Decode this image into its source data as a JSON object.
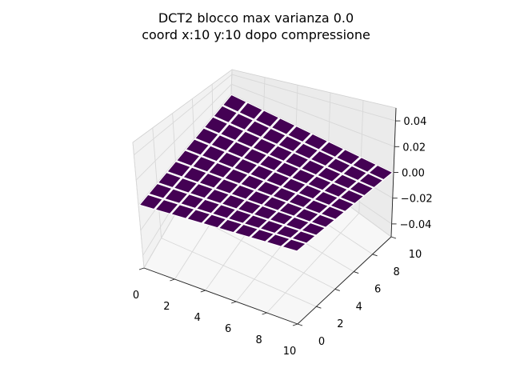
{
  "chart_data": {
    "type": "surface3d",
    "title_lines": [
      "DCT2 blocco max varianza 0.0",
      "coord x:10 y:10 dopo compressione"
    ],
    "x_ticks": [
      "0",
      "2",
      "4",
      "6",
      "8",
      "10"
    ],
    "y_ticks": [
      "0",
      "2",
      "4",
      "6",
      "8",
      "10"
    ],
    "z_ticks": [
      "−0.04",
      "−0.02",
      "0.00",
      "0.02",
      "0.04"
    ],
    "xlim": [
      0,
      10
    ],
    "ylim": [
      0,
      10
    ],
    "zlim": [
      -0.05,
      0.05
    ],
    "grid": true,
    "colormap": "viridis",
    "grid_size": [
      10,
      10
    ],
    "z_values": [
      [
        0,
        0,
        0,
        0,
        0,
        0,
        0,
        0,
        0,
        0
      ],
      [
        0,
        0,
        0,
        0,
        0,
        0,
        0,
        0,
        0,
        0
      ],
      [
        0,
        0,
        0,
        0,
        0,
        0,
        0,
        0,
        0,
        0
      ],
      [
        0,
        0,
        0,
        0,
        0,
        0,
        0,
        0,
        0,
        0
      ],
      [
        0,
        0,
        0,
        0,
        0,
        0,
        0,
        0,
        0,
        0
      ],
      [
        0,
        0,
        0,
        0,
        0,
        0,
        0,
        0,
        0,
        0
      ],
      [
        0,
        0,
        0,
        0,
        0,
        0,
        0,
        0,
        0,
        0
      ],
      [
        0,
        0,
        0,
        0,
        0,
        0,
        0,
        0,
        0,
        0
      ],
      [
        0,
        0,
        0,
        0,
        0,
        0,
        0,
        0,
        0,
        0
      ],
      [
        0,
        0,
        0,
        0,
        0,
        0,
        0,
        0,
        0,
        0
      ]
    ],
    "surface_color": "#440154",
    "edge_color": "#ffffff"
  }
}
